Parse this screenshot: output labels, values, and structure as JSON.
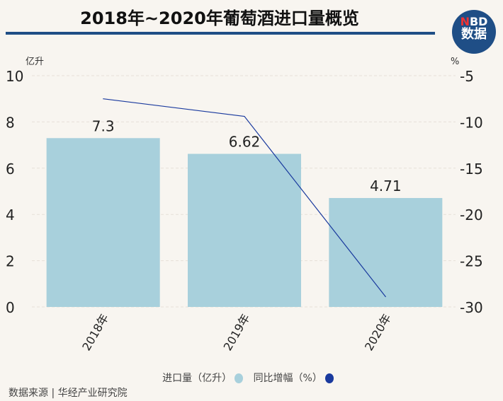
{
  "header": {
    "title": "2018年~2020年葡萄酒进口量概览",
    "logo_top": "NBD",
    "logo_bottom": "数据"
  },
  "chart_data": {
    "type": "bar+line",
    "title": "2018年~2020年葡萄酒进口量概览",
    "categories": [
      "2018年",
      "2019年",
      "2020年"
    ],
    "series": [
      {
        "name": "进口量（亿升）",
        "type": "bar",
        "axis": "left",
        "values": [
          7.3,
          6.62,
          4.71
        ],
        "labels": [
          "7.3",
          "6.62",
          "4.71"
        ],
        "color": "#a8d0dc"
      },
      {
        "name": "同比增幅（%）",
        "type": "line",
        "axis": "right",
        "values": [
          -7.5,
          -9.4,
          -28.9
        ],
        "color": "#1a3a9e"
      }
    ],
    "left_axis": {
      "label": "亿升",
      "ylim": [
        0,
        10
      ],
      "ticks": [
        "0",
        "2",
        "4",
        "6",
        "8",
        "10"
      ]
    },
    "right_axis": {
      "label": "%",
      "ylim": [
        -30,
        -5
      ],
      "ticks": [
        "-30",
        "-25",
        "-20",
        "-15",
        "-10",
        "-5"
      ]
    },
    "grid": true,
    "legend": "bottom"
  },
  "legend": {
    "bar": "进口量（亿升）",
    "line": "同比增幅（%）"
  },
  "source": "数据来源 | 华经产业研究院"
}
